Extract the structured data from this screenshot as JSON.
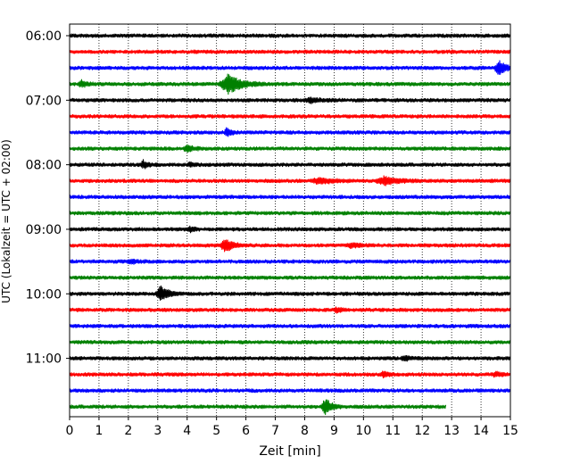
{
  "chart_data": {
    "type": "line",
    "chart_kind": "helicorder",
    "xlabel": "Zeit  [min]",
    "ylabel": "UTC (Lokalzeit = UTC + 02:00)",
    "xlim": [
      0,
      15
    ],
    "x_ticks": [
      0,
      1,
      2,
      3,
      4,
      5,
      6,
      7,
      8,
      9,
      10,
      11,
      12,
      13,
      14,
      15
    ],
    "x_tick_labels": [
      "0",
      "1",
      "2",
      "3",
      "4",
      "5",
      "6",
      "7",
      "8",
      "9",
      "10",
      "11",
      "12",
      "13",
      "14",
      "15"
    ],
    "grid": {
      "x": true,
      "style": "dotted"
    },
    "y_tick_labels": [
      {
        "label": "06:00",
        "row": 0
      },
      {
        "label": "07:00",
        "row": 4
      },
      {
        "label": "08:00",
        "row": 8
      },
      {
        "label": "09:00",
        "row": 12
      },
      {
        "label": "10:00",
        "row": 16
      },
      {
        "label": "11:00",
        "row": 20
      }
    ],
    "trace_colors": [
      "#000000",
      "#ff0000",
      "#0000ff",
      "#008000"
    ],
    "row_count": 24,
    "last_row_end_min": 12.8,
    "noise_level": 0.18,
    "events": [
      {
        "row": 2,
        "t": 14.6,
        "amp": 1.1,
        "dur": 0.6
      },
      {
        "row": 3,
        "t": 0.4,
        "amp": 0.45,
        "dur": 0.5
      },
      {
        "row": 3,
        "t": 5.4,
        "amp": 1.25,
        "dur": 1.3
      },
      {
        "row": 4,
        "t": 8.2,
        "amp": 0.3,
        "dur": 1.0
      },
      {
        "row": 6,
        "t": 5.35,
        "amp": 0.6,
        "dur": 0.4
      },
      {
        "row": 7,
        "t": 4.0,
        "amp": 0.45,
        "dur": 0.6
      },
      {
        "row": 8,
        "t": 2.5,
        "amp": 0.55,
        "dur": 0.5
      },
      {
        "row": 8,
        "t": 4.1,
        "amp": 0.3,
        "dur": 0.4
      },
      {
        "row": 9,
        "t": 8.5,
        "amp": 0.35,
        "dur": 1.4
      },
      {
        "row": 9,
        "t": 10.7,
        "amp": 0.55,
        "dur": 1.3
      },
      {
        "row": 12,
        "t": 4.1,
        "amp": 0.35,
        "dur": 0.4
      },
      {
        "row": 13,
        "t": 5.3,
        "amp": 0.85,
        "dur": 0.8
      },
      {
        "row": 13,
        "t": 9.6,
        "amp": 0.3,
        "dur": 0.8
      },
      {
        "row": 14,
        "t": 2.1,
        "amp": 0.25,
        "dur": 0.6
      },
      {
        "row": 16,
        "t": 3.1,
        "amp": 1.05,
        "dur": 0.7
      },
      {
        "row": 17,
        "t": 9.1,
        "amp": 0.25,
        "dur": 0.6
      },
      {
        "row": 20,
        "t": 11.4,
        "amp": 0.3,
        "dur": 0.6
      },
      {
        "row": 21,
        "t": 10.7,
        "amp": 0.4,
        "dur": 0.5
      },
      {
        "row": 21,
        "t": 14.5,
        "amp": 0.3,
        "dur": 0.5
      },
      {
        "row": 23,
        "t": 8.7,
        "amp": 1.15,
        "dur": 0.6
      }
    ]
  }
}
